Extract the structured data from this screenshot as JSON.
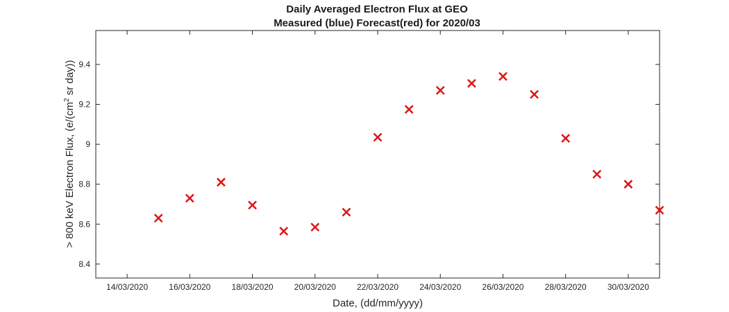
{
  "chart_data": {
    "type": "scatter",
    "title": "Daily Averaged Electron Flux at GEO",
    "subtitle": "Measured (blue) Forecast(red) for 2020/03",
    "xlabel": "Date, (dd/mm/yyyy)",
    "ylabel": {
      "before": "> 800 keV Electron Flux, (e/(cm",
      "sup": "2",
      "after": " sr day))"
    },
    "xlim": [
      "2020-03-13",
      "2020-03-31"
    ],
    "ylim": [
      8.33,
      9.57
    ],
    "x_ticks": [
      "2020-03-14",
      "2020-03-16",
      "2020-03-18",
      "2020-03-20",
      "2020-03-22",
      "2020-03-24",
      "2020-03-26",
      "2020-03-28",
      "2020-03-30"
    ],
    "x_tick_labels": [
      "14/03/2020",
      "16/03/2020",
      "18/03/2020",
      "20/03/2020",
      "22/03/2020",
      "24/03/2020",
      "26/03/2020",
      "28/03/2020",
      "30/03/2020"
    ],
    "y_ticks": [
      8.4,
      8.6,
      8.8,
      9.0,
      9.2,
      9.4
    ],
    "y_tick_labels": [
      "8.4",
      "8.6",
      "8.8",
      "9",
      "9.2",
      "9.4"
    ],
    "grid": false,
    "series": [
      {
        "name": "Forecast",
        "color": "#e01414",
        "marker": "x",
        "x": [
          "2020-03-15",
          "2020-03-16",
          "2020-03-17",
          "2020-03-18",
          "2020-03-19",
          "2020-03-20",
          "2020-03-21",
          "2020-03-22",
          "2020-03-23",
          "2020-03-24",
          "2020-03-25",
          "2020-03-26",
          "2020-03-27",
          "2020-03-28",
          "2020-03-29",
          "2020-03-30",
          "2020-03-31"
        ],
        "y": [
          8.63,
          8.73,
          8.81,
          8.695,
          8.565,
          8.585,
          8.66,
          9.035,
          9.175,
          9.27,
          9.305,
          9.34,
          9.25,
          9.03,
          8.85,
          8.8,
          8.67
        ]
      }
    ]
  }
}
